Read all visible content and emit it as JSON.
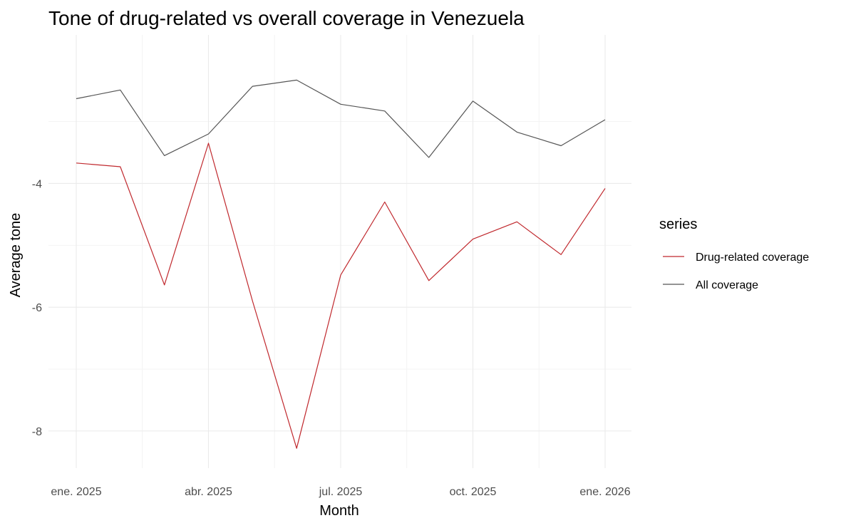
{
  "chart_data": {
    "type": "line",
    "title": "Tone of drug-related vs overall coverage in Venezuela",
    "xlabel": "Month",
    "ylabel": "Average tone",
    "x": [
      "2025-01",
      "2025-02",
      "2025-03",
      "2025-04",
      "2025-05",
      "2025-06",
      "2025-07",
      "2025-08",
      "2025-09",
      "2025-10",
      "2025-11",
      "2025-12",
      "2026-01"
    ],
    "x_ticks": [
      {
        "month": "2025-01",
        "label": "ene. 2025"
      },
      {
        "month": "2025-04",
        "label": "abr. 2025"
      },
      {
        "month": "2025-07",
        "label": "jul. 2025"
      },
      {
        "month": "2025-10",
        "label": "oct. 2025"
      },
      {
        "month": "2026-01",
        "label": "ene. 2026"
      }
    ],
    "y_ticks": [
      -8,
      -6,
      -4
    ],
    "ylim": [
      -8.6,
      -1.6
    ],
    "grid": true,
    "legend": {
      "title": "series",
      "position": "right"
    },
    "series": [
      {
        "name": "Drug-related coverage",
        "color": "#c0282d",
        "values": [
          -3.67,
          -3.73,
          -5.64,
          -3.35,
          -5.9,
          -8.28,
          -5.48,
          -4.3,
          -5.57,
          -4.9,
          -4.62,
          -5.15,
          -4.08
        ]
      },
      {
        "name": "All coverage",
        "color": "#555555",
        "values": [
          -2.63,
          -2.49,
          -3.55,
          -3.2,
          -2.43,
          -2.33,
          -2.72,
          -2.83,
          -3.58,
          -2.67,
          -3.17,
          -3.39,
          -2.97
        ]
      }
    ]
  }
}
